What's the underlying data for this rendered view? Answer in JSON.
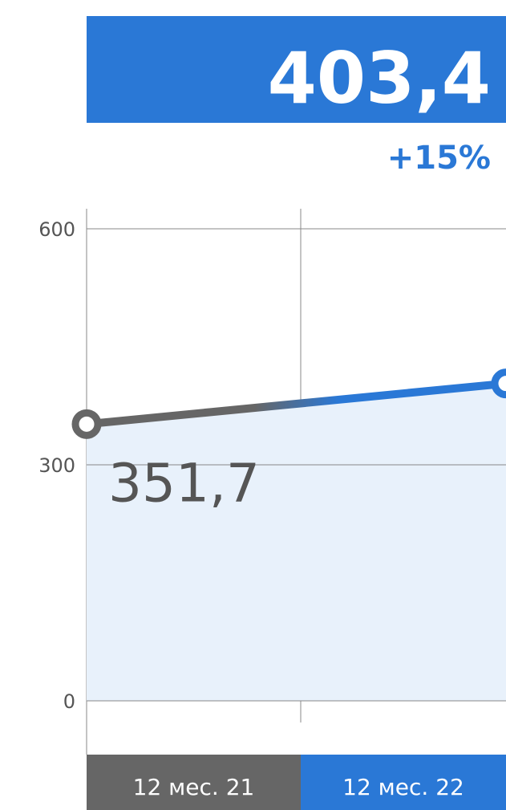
{
  "chart_data": {
    "type": "line",
    "categories": [
      "12 мес. 21",
      "12 мес. 22"
    ],
    "values": [
      351.7,
      403.4
    ],
    "value_labels": [
      "351,7",
      "403,4"
    ],
    "colors": [
      "#666666",
      "#2a78d6"
    ],
    "annotation": "+15%",
    "ylim": [
      0,
      600
    ],
    "yticks": [
      0,
      300,
      600
    ],
    "grid": true
  }
}
